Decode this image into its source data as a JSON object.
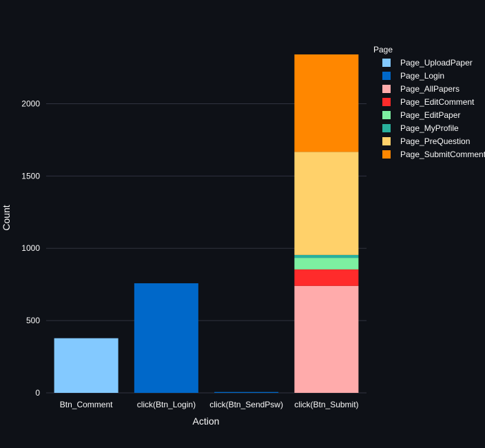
{
  "chart_data": {
    "type": "bar",
    "stacked": true,
    "xlabel": "Action",
    "ylabel": "Count",
    "legend_title": "Page",
    "legend_position": "right",
    "categories": [
      "Btn_Comment",
      "click(Btn_Login)",
      "click(Btn_SendPsw)",
      "click(Btn_Submit)"
    ],
    "yticks": [
      0,
      500,
      1000,
      1500,
      2000
    ],
    "ylim": [
      0,
      2460
    ],
    "grid": true,
    "series": [
      {
        "name": "Page_UploadPaper",
        "color": "#83c9ff",
        "values": [
          378,
          0,
          0,
          0
        ]
      },
      {
        "name": "Page_Login",
        "color": "#0068c9",
        "values": [
          0,
          758,
          6,
          0
        ]
      },
      {
        "name": "Page_AllPapers",
        "color": "#ffabab",
        "values": [
          0,
          0,
          0,
          740
        ]
      },
      {
        "name": "Page_EditComment",
        "color": "#ff2b2b",
        "values": [
          0,
          0,
          0,
          114
        ]
      },
      {
        "name": "Page_EditPaper",
        "color": "#7defa1",
        "values": [
          0,
          0,
          0,
          80
        ]
      },
      {
        "name": "Page_MyProfile",
        "color": "#29b09d",
        "values": [
          0,
          0,
          0,
          20
        ]
      },
      {
        "name": "Page_PreQuestion",
        "color": "#ffd16a",
        "values": [
          0,
          0,
          0,
          713
        ]
      },
      {
        "name": "Page_SubmitComment",
        "color": "#ff8700",
        "values": [
          0,
          0,
          0,
          674
        ]
      }
    ]
  }
}
